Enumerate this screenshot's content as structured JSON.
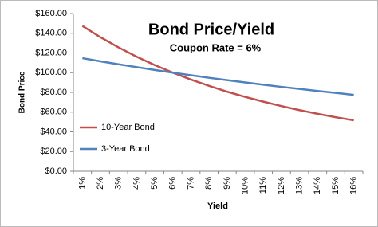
{
  "chart_data": {
    "type": "line",
    "title": "Bond Price/Yield",
    "subtitle": "Coupon Rate = 6%",
    "x_label": "Yield",
    "y_label": "Bond Price",
    "categories": [
      "1%",
      "2%",
      "3%",
      "4%",
      "5%",
      "6%",
      "7%",
      "8%",
      "9%",
      "10%",
      "11%",
      "12%",
      "13%",
      "14%",
      "15%",
      "16%"
    ],
    "series": [
      {
        "name": "10-Year Bond",
        "color": "#c0504d",
        "values": [
          147.4,
          135.9,
          125.6,
          116.2,
          107.7,
          100,
          93.0,
          86.6,
          80.7,
          75.4,
          70.6,
          66.1,
          62.0,
          58.3,
          54.8,
          51.7
        ]
      },
      {
        "name": "3-Year Bond",
        "color": "#4f81bd",
        "values": [
          114.7,
          111.5,
          108.5,
          105.6,
          102.7,
          100,
          97.4,
          94.8,
          92.4,
          90.1,
          87.8,
          85.6,
          83.5,
          81.4,
          79.5,
          77.5
        ]
      }
    ],
    "ylim": [
      0,
      160
    ],
    "yticks": [
      {
        "value": 0,
        "label": "$0.00"
      },
      {
        "value": 20,
        "label": "$20.00"
      },
      {
        "value": 40,
        "label": "$40.00"
      },
      {
        "value": 60,
        "label": "$60.00"
      },
      {
        "value": 80,
        "label": "$80.00"
      },
      {
        "value": 100,
        "label": "$100.00"
      },
      {
        "value": 120,
        "label": "$120.00"
      },
      {
        "value": 140,
        "label": "$140.00"
      },
      {
        "value": 160,
        "label": "$160.00"
      }
    ],
    "grid": false,
    "legend": "left"
  }
}
